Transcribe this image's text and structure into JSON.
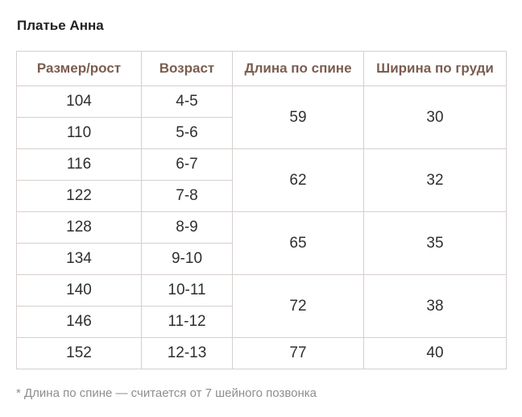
{
  "title": "Платье Анна",
  "table": {
    "headers": [
      "Размер/рост",
      "Возраст",
      "Длина по спине",
      "Ширина по груди"
    ],
    "rows": [
      {
        "size": "104",
        "age": "4-5"
      },
      {
        "size": "110",
        "age": "5-6"
      },
      {
        "size": "116",
        "age": "6-7"
      },
      {
        "size": "122",
        "age": "7-8"
      },
      {
        "size": "128",
        "age": "8-9"
      },
      {
        "size": "134",
        "age": "9-10"
      },
      {
        "size": "140",
        "age": "10-11"
      },
      {
        "size": "146",
        "age": "11-12"
      },
      {
        "size": "152",
        "age": "12-13"
      }
    ],
    "groups": [
      {
        "back_length": "59",
        "chest_width": "30"
      },
      {
        "back_length": "62",
        "chest_width": "32"
      },
      {
        "back_length": "65",
        "chest_width": "35"
      },
      {
        "back_length": "72",
        "chest_width": "38"
      },
      {
        "back_length": "77",
        "chest_width": "40"
      }
    ]
  },
  "footnote": "* Длина по спине — считается от 7 шейного позвонка"
}
